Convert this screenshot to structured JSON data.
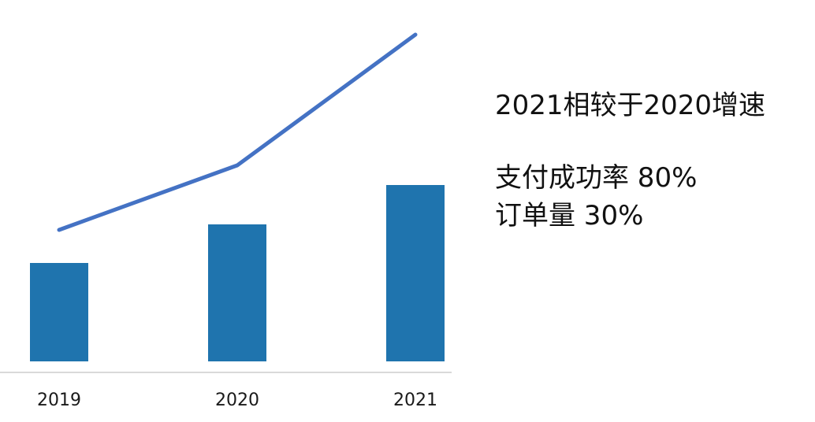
{
  "chart_data": {
    "type": "bar",
    "categories": [
      "2019",
      "2020",
      "2021"
    ],
    "series": [
      {
        "type": "bar",
        "values": [
          125,
          174,
          224
        ],
        "color": "#1f74ae"
      },
      {
        "type": "line",
        "values": [
          167,
          249,
          415
        ],
        "color": "#4472c4"
      }
    ],
    "title": "",
    "xlabel": "",
    "ylabel": "",
    "ylim": [
      0,
      460
    ],
    "grid": false,
    "legend": "none"
  },
  "annotation": {
    "title": "2021相较于2020增速",
    "lines": [
      "支付成功率 80%",
      "订单量 30%"
    ]
  }
}
